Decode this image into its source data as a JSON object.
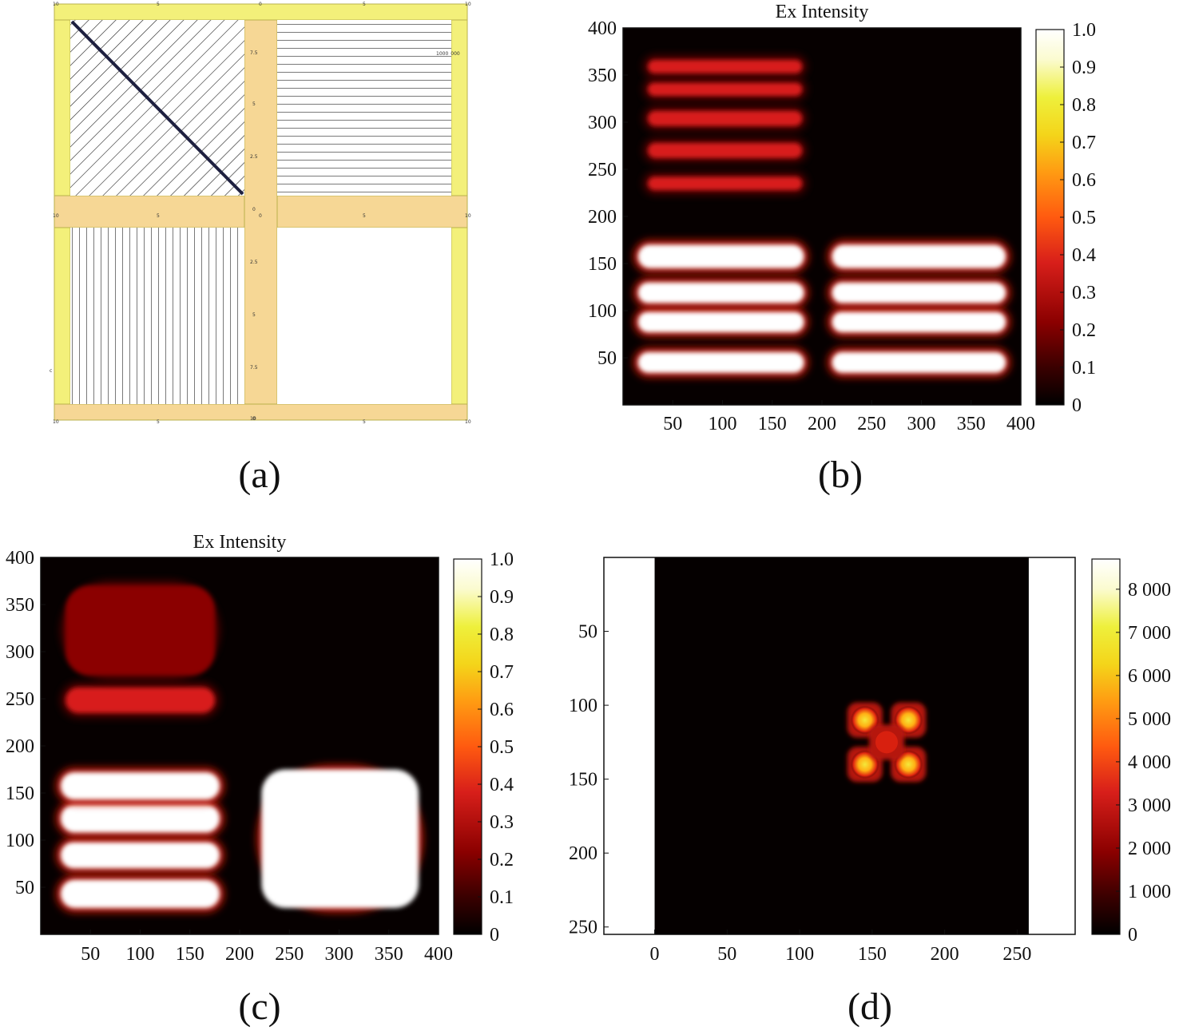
{
  "figure": {
    "panel_labels": [
      "(a)",
      "(b)",
      "(c)",
      "(d)"
    ]
  },
  "colors": {
    "frame_yellow": "#f3f07a",
    "frame_orange": "#f6d795",
    "hatch": "#1e1e1e",
    "colormap": [
      "#000000",
      "#3a0000",
      "#8b0000",
      "#d81f1a",
      "#ff5a10",
      "#ff9b12",
      "#f4d51a",
      "#eef03c",
      "#fbfbcf",
      "#ffffff"
    ]
  },
  "layout_a": {
    "description_labels": {
      "top": [
        "10",
        "5",
        "0",
        "5",
        "10"
      ],
      "middle": [
        "10",
        "5",
        "0",
        "5",
        "10"
      ],
      "bottom": [
        "10",
        "5",
        "0",
        "5",
        "10"
      ],
      "vertical_upper": [
        "7.5",
        "5",
        "2.5",
        "0"
      ],
      "vertical_lower": [
        "2.5",
        "5",
        "7.5",
        "10"
      ],
      "right_note": "1000_000",
      "left_note": "c"
    }
  },
  "chart_data": [
    {
      "panel": "(b)",
      "type": "heatmap",
      "title": "Ex Intensity",
      "xlabel": "",
      "ylabel": "",
      "xlim": [
        0,
        400
      ],
      "ylim": [
        0,
        400
      ],
      "xticks": [
        "50",
        "100",
        "150",
        "200",
        "250",
        "300",
        "350",
        "400"
      ],
      "yticks": [
        "50",
        "100",
        "150",
        "200",
        "250",
        "300",
        "350",
        "400"
      ],
      "colorbar": {
        "min": 0,
        "max": 1,
        "ticks": [
          "0",
          "0.1",
          "0.2",
          "0.3",
          "0.4",
          "0.5",
          "0.6",
          "0.7",
          "0.8",
          "0.9",
          "1.0"
        ]
      },
      "blobs": [
        {
          "x": [
            25,
            180
          ],
          "y": [
            228,
            242
          ],
          "value": 0.4
        },
        {
          "x": [
            25,
            180
          ],
          "y": [
            262,
            278
          ],
          "value": 0.4
        },
        {
          "x": [
            25,
            180
          ],
          "y": [
            296,
            312
          ],
          "value": 0.4
        },
        {
          "x": [
            25,
            180
          ],
          "y": [
            328,
            342
          ],
          "value": 0.4
        },
        {
          "x": [
            25,
            180
          ],
          "y": [
            352,
            366
          ],
          "value": 0.4
        },
        {
          "x": [
            15,
            182
          ],
          "y": [
            34,
            56
          ],
          "value": 1.0
        },
        {
          "x": [
            15,
            182
          ],
          "y": [
            77,
            99
          ],
          "value": 1.0
        },
        {
          "x": [
            15,
            182
          ],
          "y": [
            108,
            130
          ],
          "value": 1.0
        },
        {
          "x": [
            15,
            182
          ],
          "y": [
            145,
            170
          ],
          "value": 1.0
        },
        {
          "x": [
            210,
            385
          ],
          "y": [
            34,
            56
          ],
          "value": 1.0
        },
        {
          "x": [
            210,
            385
          ],
          "y": [
            77,
            99
          ],
          "value": 1.0
        },
        {
          "x": [
            210,
            385
          ],
          "y": [
            108,
            130
          ],
          "value": 1.0
        },
        {
          "x": [
            210,
            385
          ],
          "y": [
            145,
            170
          ],
          "value": 1.0
        }
      ]
    },
    {
      "panel": "(c)",
      "type": "heatmap",
      "title": "Ex Intensity",
      "xlabel": "",
      "ylabel": "",
      "xlim": [
        0,
        400
      ],
      "ylim": [
        0,
        400
      ],
      "xticks": [
        "50",
        "100",
        "150",
        "200",
        "250",
        "300",
        "350",
        "400"
      ],
      "yticks": [
        "50",
        "100",
        "150",
        "200",
        "250",
        "300",
        "350",
        "400"
      ],
      "colorbar": {
        "min": 0,
        "max": 1,
        "ticks": [
          "0",
          "0.1",
          "0.2",
          "0.3",
          "0.4",
          "0.5",
          "0.6",
          "0.7",
          "0.8",
          "0.9",
          "1.0"
        ]
      },
      "blobs": [
        {
          "x": [
            25,
            175
          ],
          "y": [
            235,
            262
          ],
          "value": 0.4
        },
        {
          "x": [
            25,
            175
          ],
          "y": [
            275,
            370
          ],
          "value": 0.35
        },
        {
          "x": [
            20,
            180
          ],
          "y": [
            28,
            58
          ],
          "value": 1.0
        },
        {
          "x": [
            20,
            180
          ],
          "y": [
            70,
            98
          ],
          "value": 1.0
        },
        {
          "x": [
            20,
            180
          ],
          "y": [
            108,
            138
          ],
          "value": 1.0
        },
        {
          "x": [
            20,
            180
          ],
          "y": [
            143,
            172
          ],
          "value": 1.0
        },
        {
          "x": [
            222,
            380
          ],
          "y": [
            28,
            175
          ],
          "value": 1.0
        }
      ]
    },
    {
      "panel": "(d)",
      "type": "heatmap",
      "title": "",
      "xlabel": "",
      "ylabel": "",
      "xlim": [
        -35,
        290
      ],
      "ylim": [
        0,
        255
      ],
      "xticks": [
        "0",
        "50",
        "100",
        "150",
        "200",
        "250"
      ],
      "yticks": [
        "50",
        "100",
        "150",
        "200",
        "250"
      ],
      "colorbar": {
        "min": 0,
        "max": 8700,
        "ticks": [
          "0",
          "1 000",
          "2 000",
          "3 000",
          "4 000",
          "5 000",
          "6 000",
          "7 000",
          "8 000"
        ]
      },
      "peaks": [
        {
          "x": 145,
          "y": 110,
          "value": 6500
        },
        {
          "x": 175,
          "y": 110,
          "value": 6500
        },
        {
          "x": 145,
          "y": 140,
          "value": 7000
        },
        {
          "x": 175,
          "y": 140,
          "value": 7000
        },
        {
          "x": 160,
          "y": 125,
          "value": 3500
        }
      ]
    }
  ]
}
